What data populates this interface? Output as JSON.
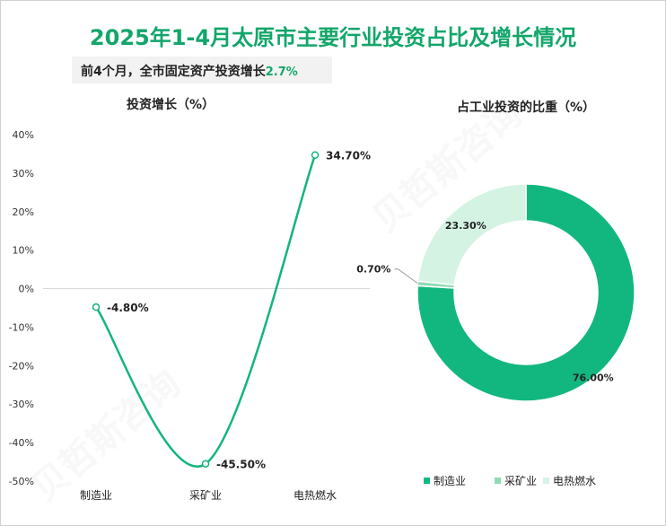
{
  "title": "2025年1-4月太原市主要行业投资占比及增长情况",
  "subtitle": {
    "text": "前4个月，全市固定资产投资增长",
    "value": "2.7%"
  },
  "colors": {
    "title": "#13a66a",
    "line": "#13b57a",
    "manufacturing": "#12b77f",
    "mining": "#8fdcb5",
    "utilities": "#d5f3e3"
  },
  "chart_data": [
    {
      "type": "line",
      "title": "投资增长（%）",
      "categories": [
        "制造业",
        "采矿业",
        "电热燃水"
      ],
      "values": [
        -4.8,
        -45.5,
        34.7
      ],
      "value_labels": [
        "-4.80%",
        "-45.50%",
        "34.70%"
      ],
      "y_ticks": [
        "40%",
        "30%",
        "20%",
        "10%",
        "0%",
        "-10%",
        "-20%",
        "-30%",
        "-40%",
        "-50%"
      ],
      "ylim": [
        -50,
        40
      ],
      "grid": false
    },
    {
      "type": "pie",
      "title": "占工业投资的比重（%）",
      "categories": [
        "制造业",
        "采矿业",
        "电热燃水"
      ],
      "values": [
        76.0,
        0.7,
        23.3
      ],
      "value_labels": [
        "76.00%",
        "0.70%",
        "23.30%"
      ],
      "legend": "bottom"
    }
  ]
}
